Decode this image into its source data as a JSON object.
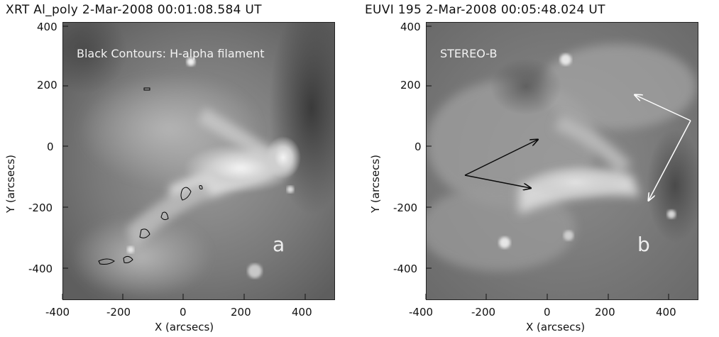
{
  "panels": [
    {
      "title": "XRT Al_poly   2-Mar-2008 00:01:08.584 UT",
      "annotation": "Black Contours: H-alpha filament",
      "letter": "a",
      "xlabel": "X (arcsecs)",
      "ylabel": "Y (arcsecs)",
      "xticks": [
        "-400",
        "-200",
        "0",
        "200",
        "400"
      ],
      "yticks": [
        "400",
        "200",
        "0",
        "-200",
        "-400"
      ]
    },
    {
      "title": "EUVI 195   2-Mar-2008 00:05:48.024 UT",
      "annotation": "STEREO-B",
      "letter": "b",
      "xlabel": "X (arcsecs)",
      "ylabel": "Y (arcsecs)",
      "xticks": [
        "-400",
        "-200",
        "0",
        "200",
        "400"
      ],
      "yticks": [
        "400",
        "200",
        "0",
        "-200",
        "-400"
      ]
    }
  ],
  "colors": {
    "contour": "#000000",
    "arrow_dark": "#0a0a0a",
    "arrow_light": "#ffffff"
  }
}
